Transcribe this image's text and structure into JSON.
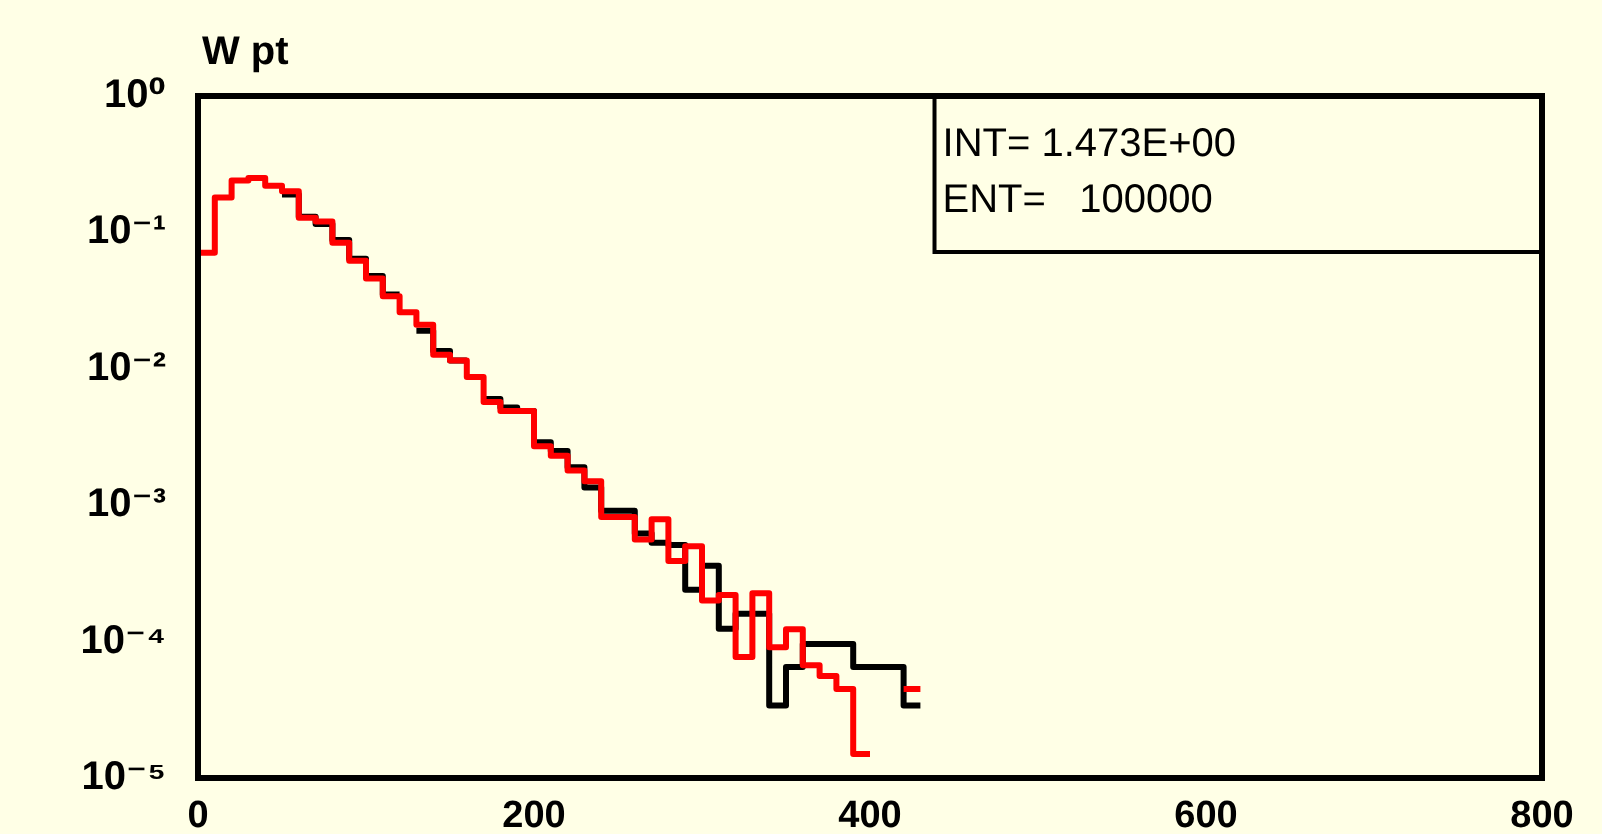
{
  "chart_data": {
    "type": "step",
    "title": "W pt",
    "annotations": [
      "INT= 1.473E+00",
      "ENT=   100000"
    ],
    "x": [
      0,
      10,
      20,
      30,
      40,
      50,
      60,
      70,
      80,
      90,
      100,
      110,
      120,
      130,
      140,
      150,
      160,
      170,
      180,
      190,
      200,
      210,
      220,
      230,
      240,
      250,
      260,
      270,
      280,
      290,
      300,
      310,
      320,
      330,
      340,
      350,
      360,
      370,
      380,
      390,
      400,
      410,
      420,
      430
    ],
    "series": [
      {
        "color": "#ff0000",
        "values": [
          0.071,
          0.18,
          0.24,
          0.25,
          0.22,
          0.2,
          0.128,
          0.12,
          0.084,
          0.062,
          0.046,
          0.034,
          0.026,
          0.021,
          0.0127,
          0.0115,
          0.0087,
          0.0057,
          0.0049,
          0.0049,
          0.0027,
          0.0023,
          0.0018,
          0.0015,
          0.00082,
          0.00082,
          0.00056,
          0.00079,
          0.00039,
          0.0005,
          0.0002,
          0.00022,
          7.7e-05,
          0.000226,
          9.1e-05,
          0.000123,
          6.7e-05,
          5.6e-05,
          4.5e-05,
          1.5e-05,
          null,
          null,
          4.5e-05,
          4.5e-05
        ]
      },
      {
        "color": "#000000",
        "values": [
          null,
          null,
          null,
          null,
          null,
          0.19,
          0.13,
          0.115,
          0.088,
          0.064,
          0.048,
          0.035,
          null,
          0.019,
          0.0135,
          0.0115,
          null,
          0.006,
          0.0052,
          0.0049,
          0.0029,
          0.0025,
          0.0019,
          0.00135,
          0.00091,
          0.00091,
          0.00062,
          0.00053,
          0.00051,
          0.00024,
          0.00036,
          0.000124,
          0.00016,
          0.00016,
          3.4e-05,
          6.5e-05,
          9.6e-05,
          9.6e-05,
          9.6e-05,
          6.5e-05,
          6.5e-05,
          6.5e-05,
          3.4e-05,
          3.4e-05
        ]
      }
    ],
    "xlim": [
      0,
      800
    ],
    "xticks": [
      0,
      200,
      400,
      600,
      800
    ],
    "ylim": [
      1e-05,
      1
    ],
    "yticks": [
      {
        "value": 1e-05,
        "label": "10⁻⁵"
      },
      {
        "value": 0.0001,
        "label": "10⁻⁴"
      },
      {
        "value": 0.001,
        "label": "10⁻³"
      },
      {
        "value": 0.01,
        "label": "10⁻²"
      },
      {
        "value": 0.1,
        "label": "10⁻¹"
      },
      {
        "value": 1,
        "label": "10⁰"
      }
    ],
    "log": "y",
    "grid": false,
    "legend": false
  }
}
